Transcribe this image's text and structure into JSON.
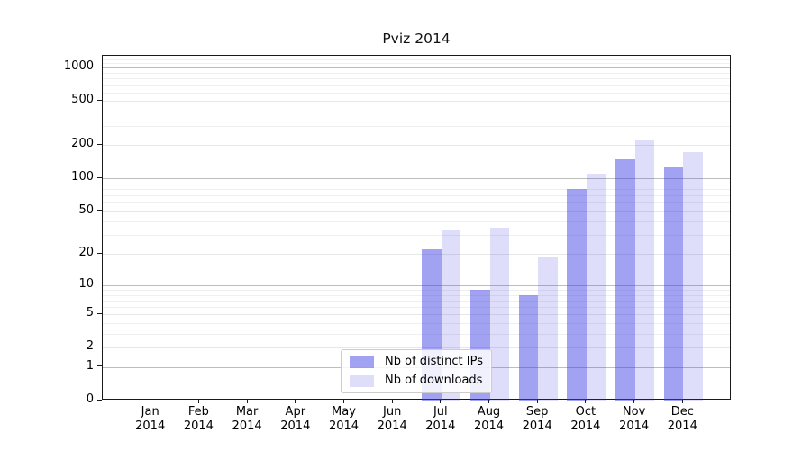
{
  "chart_data": {
    "type": "bar",
    "title": "Pviz 2014",
    "x_tick_months": [
      "Jan",
      "Feb",
      "Mar",
      "Apr",
      "May",
      "Jun",
      "Jul",
      "Aug",
      "Sep",
      "Oct",
      "Nov",
      "Dec"
    ],
    "x_tick_year": "2014",
    "y_scale": "symlog",
    "y_axis_max": 1285,
    "ylim": [
      0,
      1285
    ],
    "y_tick_values": [
      0,
      1,
      2,
      5,
      10,
      20,
      50,
      100,
      200,
      500,
      1000
    ],
    "y_tick_labels": [
      "0",
      "1",
      "2",
      "5",
      "10",
      "20",
      "50",
      "100",
      "200",
      "500",
      "1000"
    ],
    "y_major_gridline_values": [
      1,
      10,
      100,
      1000
    ],
    "y_minor_gridline_values": [
      3,
      4,
      6,
      7,
      8,
      9,
      30,
      40,
      60,
      70,
      80,
      90,
      300,
      400,
      600,
      700,
      800,
      900,
      1100,
      1200
    ],
    "grid": true,
    "legend_position": "lower center",
    "series": [
      {
        "name": "Nb of distinct IPs",
        "color": "rgba(60,60,230,0.48)",
        "values": [
          0,
          0,
          0,
          0,
          0,
          0,
          22,
          9,
          8,
          80,
          150,
          126
        ]
      },
      {
        "name": "Nb of downloads",
        "color": "rgba(60,60,230,0.17)",
        "values": [
          0,
          0,
          0,
          0,
          0,
          0,
          33,
          35,
          19,
          110,
          220,
          172
        ]
      }
    ],
    "colors": {
      "bar_distinct_ips_rendered": "#a8a8f0",
      "bar_downloads_rendered": "#dcdcf8",
      "major_grid": "#bdbdbd",
      "light_grid": "#e7e7e7",
      "minor_grid": "#efefef",
      "spine": "#1a1a1a",
      "text": "#000000",
      "background": "#ffffff"
    }
  }
}
